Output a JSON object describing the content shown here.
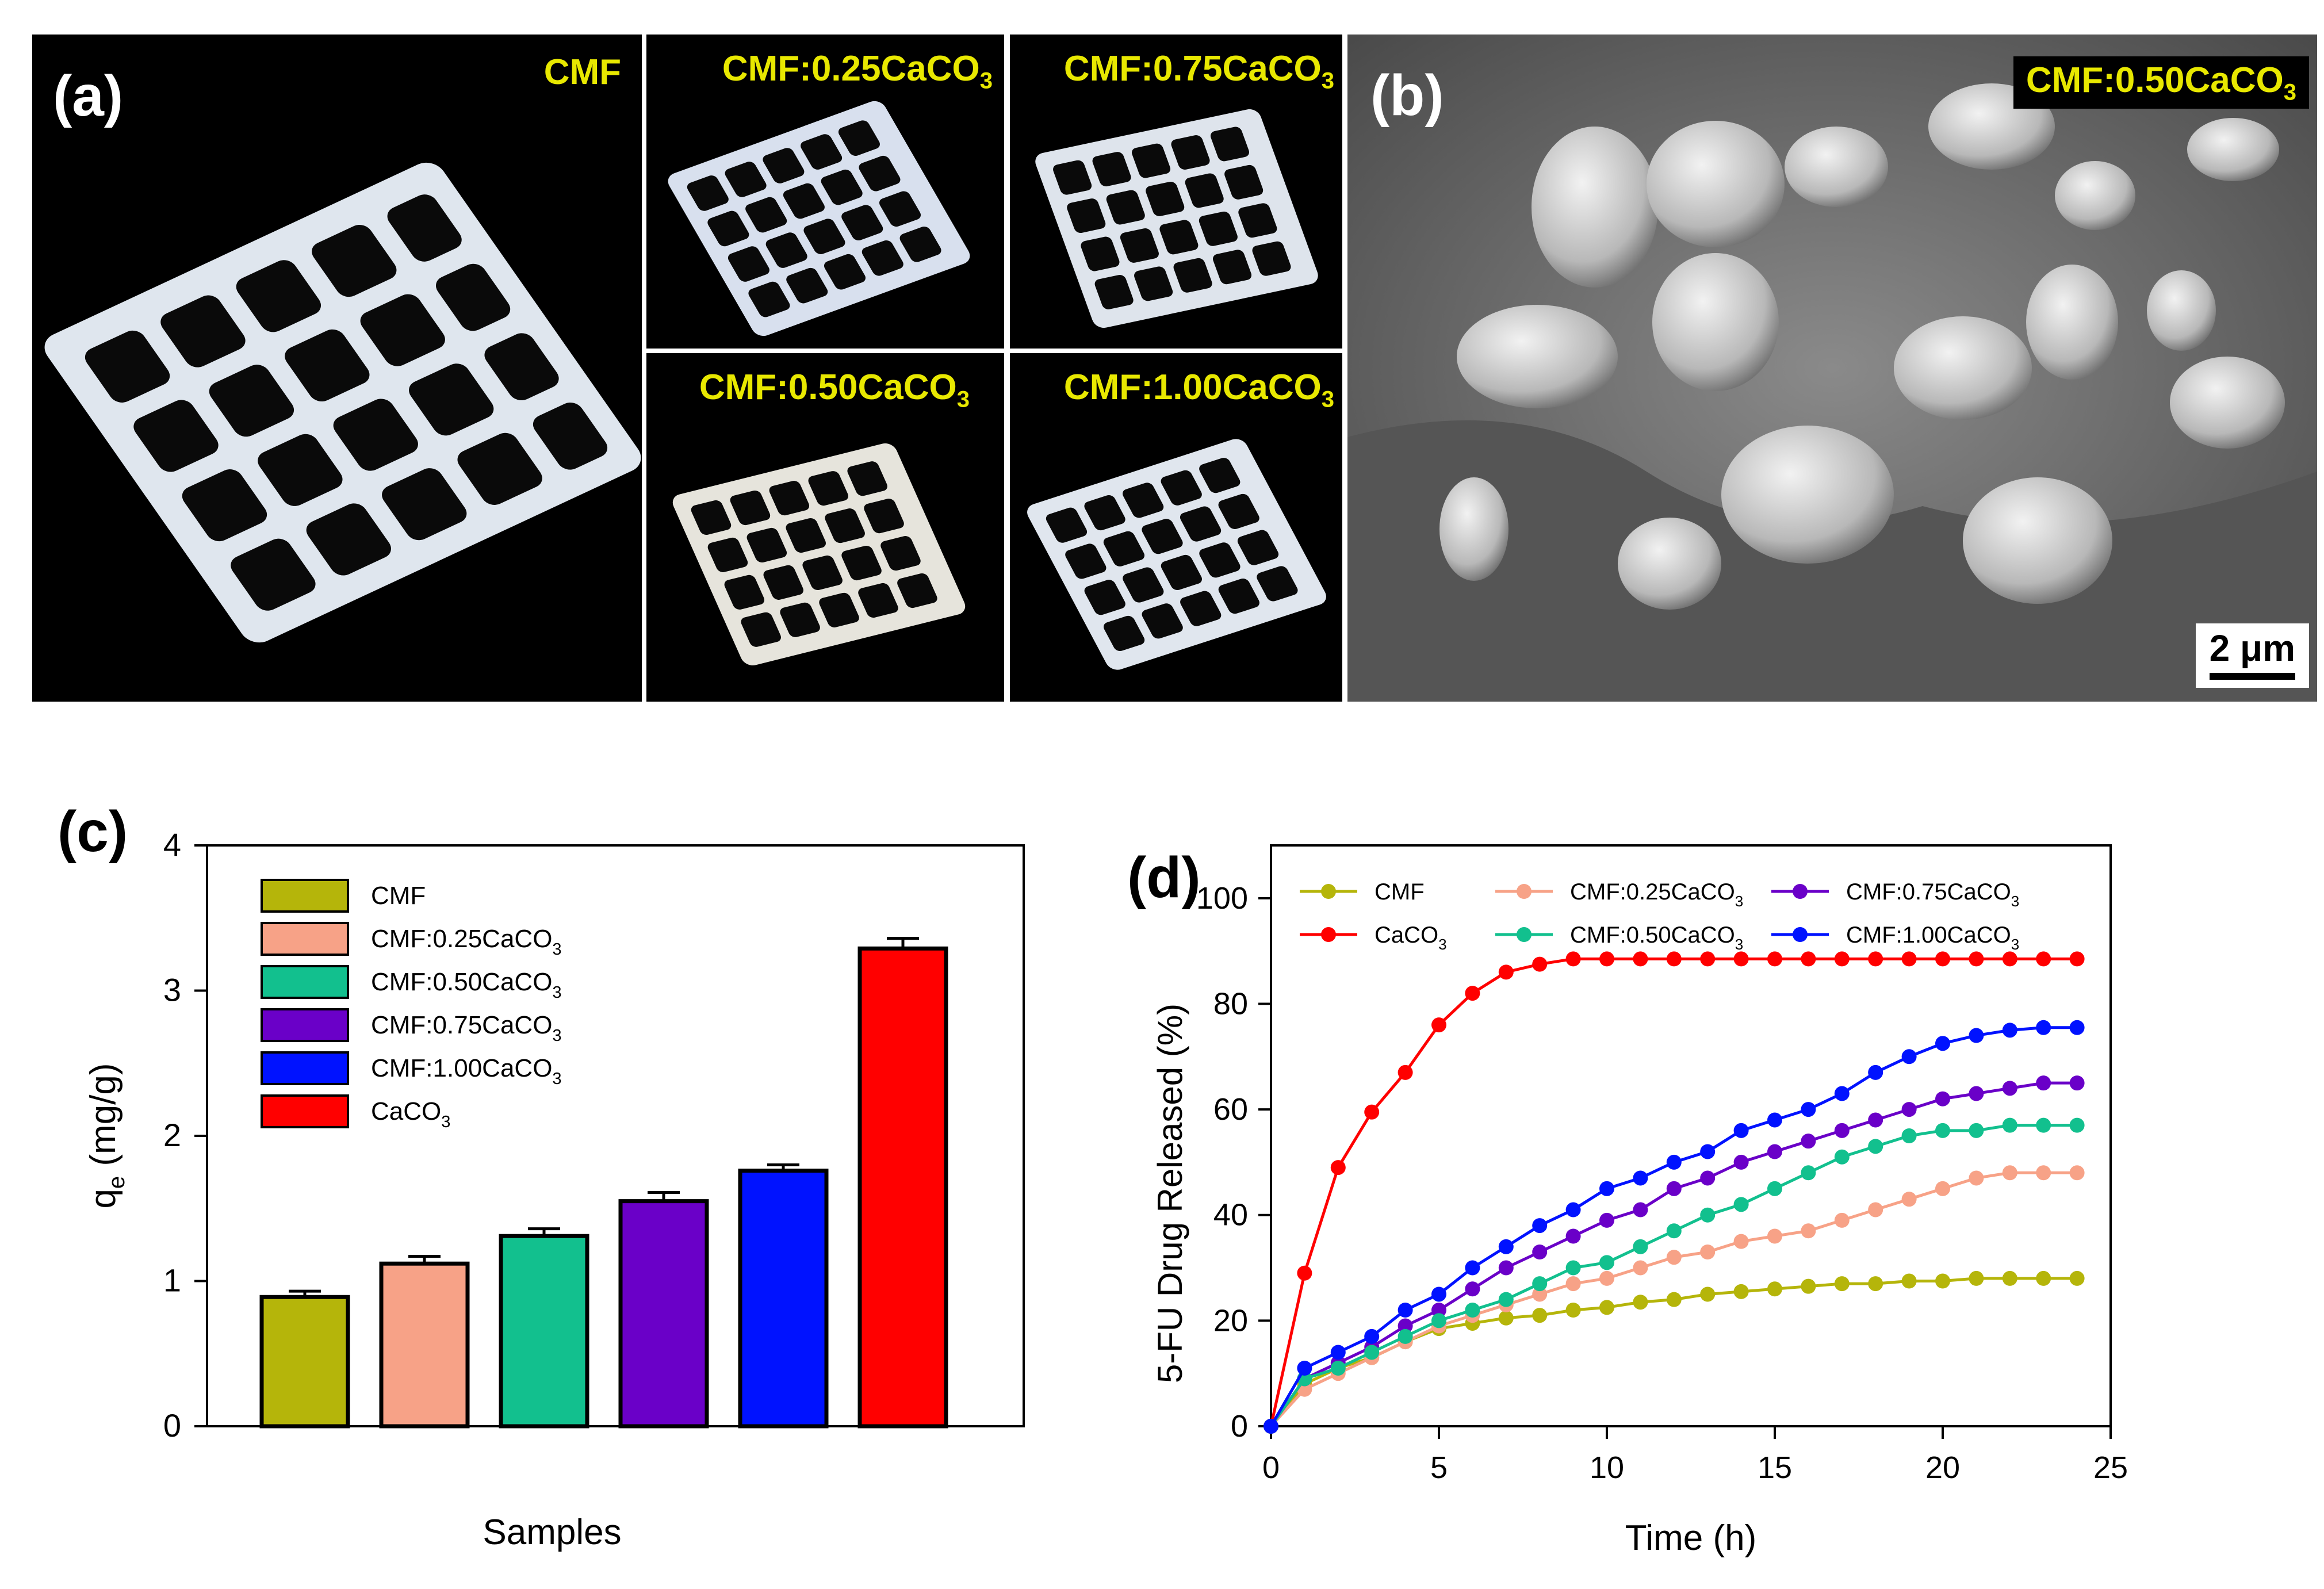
{
  "panel_a": {
    "label": "(a)",
    "samples": [
      "CMF",
      "CMF:0.25CaCO",
      "CMF:0.75CaCO",
      "CMF:0.50CaCO",
      "CMF:1.00CaCO"
    ],
    "subscript": "3"
  },
  "panel_b": {
    "label": "(b)",
    "tag": "CMF:0.50CaCO",
    "tag_sub": "3",
    "scale_bar": "2 μm"
  },
  "colors": {
    "CMF": "#b5b50a",
    "CMF025": "#f7a287",
    "CMF050": "#12c08e",
    "CMF075": "#6a00c8",
    "CMF100": "#0012ff",
    "CaCO3": "#ff0000"
  },
  "chart_data": [
    {
      "panel": "(c)",
      "type": "bar",
      "title": "",
      "xlabel": "Samples",
      "ylabel": "q",
      "ylabel_sub": "e",
      "ylabel_unit": " (mg/g)",
      "ylim": [
        0,
        4
      ],
      "yticks": [
        0,
        1,
        2,
        3,
        4
      ],
      "categories": [
        "CMF",
        "CMF:0.25CaCO3",
        "CMF:0.50CaCO3",
        "CMF:0.75CaCO3",
        "CMF:1.00CaCO3",
        "CaCO3"
      ],
      "legend": [
        {
          "name": "CMF",
          "sub": ""
        },
        {
          "name": "CMF:0.25CaCO",
          "sub": "3"
        },
        {
          "name": "CMF:0.50CaCO",
          "sub": "3"
        },
        {
          "name": "CMF:0.75CaCO",
          "sub": "3"
        },
        {
          "name": "CMF:1.00CaCO",
          "sub": "3"
        },
        {
          "name": "CaCO",
          "sub": "3"
        }
      ],
      "values": [
        0.89,
        1.12,
        1.31,
        1.55,
        1.76,
        3.29
      ],
      "errors": [
        0.04,
        0.05,
        0.05,
        0.06,
        0.04,
        0.07
      ],
      "legend_position": "top-left"
    },
    {
      "panel": "(d)",
      "type": "line",
      "title": "",
      "xlabel": "Time (h)",
      "ylabel": "5-FU Drug Released (%)",
      "xlim": [
        0,
        25
      ],
      "ylim": [
        0,
        110
      ],
      "xticks": [
        0,
        5,
        10,
        15,
        20,
        25
      ],
      "yticks": [
        0,
        20,
        40,
        60,
        80,
        100
      ],
      "x": [
        0,
        1,
        2,
        3,
        4,
        5,
        6,
        7,
        8,
        9,
        10,
        11,
        12,
        13,
        14,
        15,
        16,
        17,
        18,
        19,
        20,
        21,
        22,
        23,
        24
      ],
      "series": [
        {
          "name": "CMF",
          "sub": "",
          "color_key": "CMF",
          "values": [
            0,
            8,
            11,
            13,
            16,
            18.5,
            19.5,
            20.5,
            21,
            22,
            22.5,
            23.5,
            24,
            25,
            25.5,
            26,
            26.5,
            27,
            27,
            27.5,
            27.5,
            28,
            28,
            28,
            28
          ]
        },
        {
          "name": "CMF:0.25CaCO",
          "sub": "3",
          "color_key": "CMF025",
          "values": [
            0,
            7,
            10,
            13,
            16,
            19,
            21,
            23,
            25,
            27,
            28,
            30,
            32,
            33,
            35,
            36,
            37,
            39,
            41,
            43,
            45,
            47,
            48,
            48,
            48
          ]
        },
        {
          "name": "CMF:0.75CaCO",
          "sub": "3",
          "color_key": "CMF075",
          "values": [
            0,
            9,
            12,
            15,
            19,
            22,
            26,
            30,
            33,
            36,
            39,
            41,
            45,
            47,
            50,
            52,
            54,
            56,
            58,
            60,
            62,
            63,
            64,
            65,
            65
          ]
        },
        {
          "name": "CaCO",
          "sub": "3",
          "color_key": "CaCO3",
          "values": [
            0,
            29,
            49,
            59.5,
            67,
            76,
            82,
            86,
            87.5,
            88.5,
            88.5,
            88.5,
            88.5,
            88.5,
            88.5,
            88.5,
            88.5,
            88.5,
            88.5,
            88.5,
            88.5,
            88.5,
            88.5,
            88.5,
            88.5
          ]
        },
        {
          "name": "CMF:0.50CaCO",
          "sub": "3",
          "color_key": "CMF050",
          "values": [
            0,
            9,
            11,
            14,
            17,
            20,
            22,
            24,
            27,
            30,
            31,
            34,
            37,
            40,
            42,
            45,
            48,
            51,
            53,
            55,
            56,
            56,
            57,
            57,
            57
          ]
        },
        {
          "name": "CMF:1.00CaCO",
          "sub": "3",
          "color_key": "CMF100",
          "values": [
            0,
            11,
            14,
            17,
            22,
            25,
            30,
            34,
            38,
            41,
            45,
            47,
            50,
            52,
            56,
            58,
            60,
            63,
            67,
            70,
            72.5,
            74,
            75,
            75.5,
            75.5
          ]
        }
      ],
      "legend_position": "top"
    }
  ]
}
